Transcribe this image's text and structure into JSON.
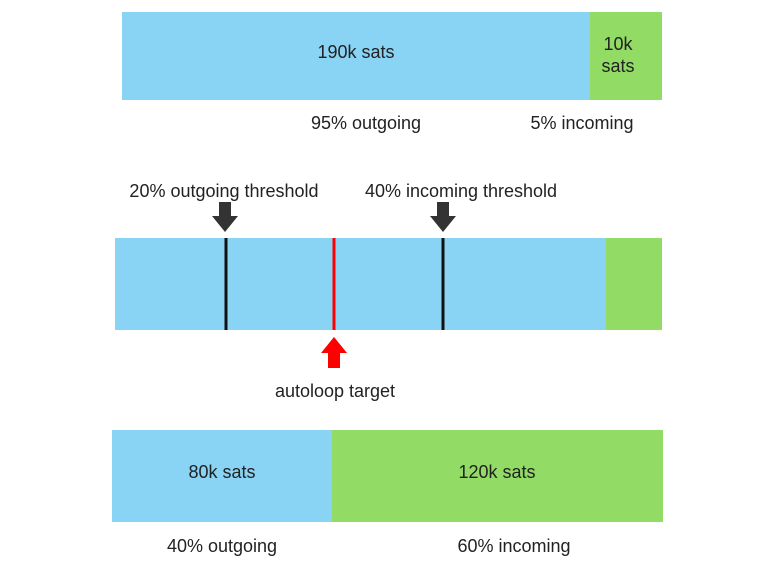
{
  "top": {
    "outgoing_amount": "190k sats",
    "incoming_amount": "10k sats",
    "outgoing_label": "95% outgoing",
    "incoming_label": "5% incoming"
  },
  "middle": {
    "outgoing_threshold": "20% outgoing threshold",
    "incoming_threshold": "40% incoming threshold",
    "target": "autoloop target"
  },
  "bottom": {
    "outgoing_amount": "80k sats",
    "incoming_amount": "120k sats",
    "outgoing_label": "40% outgoing",
    "incoming_label": "60% incoming"
  }
}
